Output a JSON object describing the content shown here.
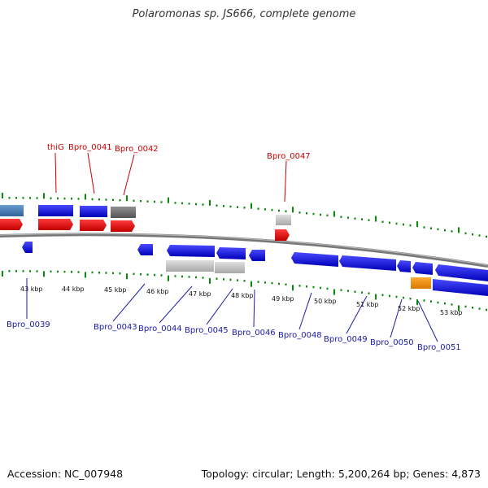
{
  "title": "Polaromonas sp. JS666, complete genome",
  "footer": {
    "accession": "Accession: NC_007948",
    "summary": "Topology: circular; Length: 5,200,264 bp; Genes: 4,873"
  },
  "colors": {
    "gene_blue": "#1010e0",
    "gene_red": "#e00000",
    "gene_gray": "#c0c0c0",
    "gene_darkgray": "#6a6a6a",
    "gene_steel": "#3f78b0",
    "gene_orange": "#f08a00",
    "tick_green": "#0a8a0a",
    "label_top": "#cc0000",
    "label_bottom": "#1a1aa8"
  },
  "kbp_ticks": [
    "43 kbp",
    "44 kbp",
    "45 kbp",
    "46 kbp",
    "47 kbp",
    "48 kbp",
    "49 kbp",
    "50 kbp",
    "51 kbp",
    "52 kbp",
    "53 kbp"
  ],
  "top_labels": [
    "thiG",
    "Bpro_0041",
    "Bpro_0042",
    "Bpro_0047"
  ],
  "bottom_labels": [
    "Bpro_0039",
    "Bpro_0043",
    "Bpro_0044",
    "Bpro_0045",
    "Bpro_0046",
    "Bpro_0048",
    "Bpro_0049",
    "Bpro_0050",
    "Bpro_0051"
  ]
}
